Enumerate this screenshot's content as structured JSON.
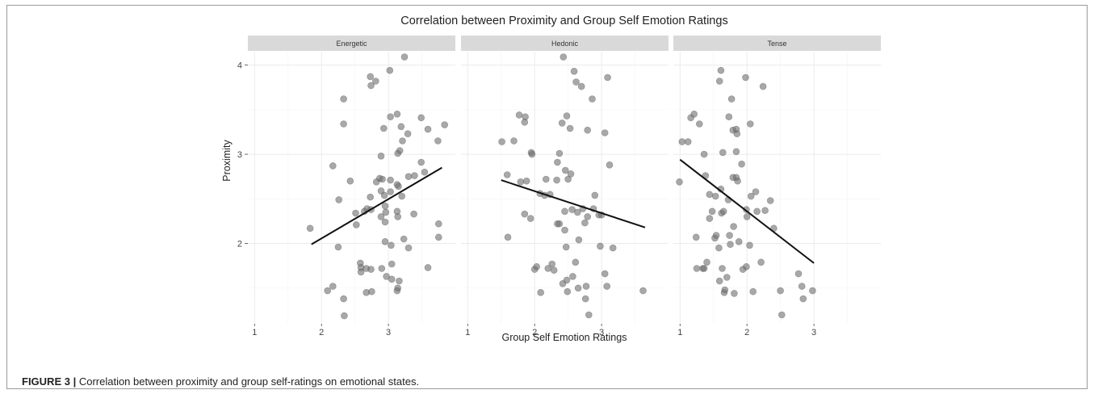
{
  "figure": {
    "caption_label": "FIGURE 3 |",
    "caption_text": "Correlation between proximity and group self-ratings on emotional states."
  },
  "colors": {
    "point_fill": "#6e6e6e",
    "point_stroke": "#555555",
    "strip_bg": "#d9d9d9",
    "grid": "#ebebeb",
    "line": "#111111"
  },
  "chart_data": {
    "type": "scatter",
    "title": "Correlation between Proximity and Group Self Emotion Ratings",
    "xlabel": "Group Self Emotion Ratings",
    "ylabel": "Proximity",
    "xlim": [
      0.9,
      4.0
    ],
    "ylim": [
      1.1,
      4.15
    ],
    "x_ticks": [
      1,
      2,
      3
    ],
    "y_ticks": [
      2,
      3,
      4
    ],
    "grid": true,
    "facets": [
      {
        "name": "Energetic",
        "fit_line": [
          [
            1.85,
            1.99
          ],
          [
            3.8,
            2.85
          ]
        ],
        "points": [
          [
            1.83,
            2.17
          ],
          [
            2.09,
            1.47
          ],
          [
            2.17,
            2.87
          ],
          [
            2.17,
            1.52
          ],
          [
            2.26,
            2.49
          ],
          [
            2.25,
            1.96
          ],
          [
            2.33,
            3.62
          ],
          [
            2.33,
            3.34
          ],
          [
            2.33,
            1.38
          ],
          [
            2.34,
            1.19
          ],
          [
            2.43,
            2.7
          ],
          [
            2.51,
            2.34
          ],
          [
            2.52,
            2.21
          ],
          [
            2.58,
            1.78
          ],
          [
            2.59,
            1.73
          ],
          [
            2.59,
            1.68
          ],
          [
            2.64,
            2.36
          ],
          [
            2.68,
            2.39
          ],
          [
            2.67,
            1.72
          ],
          [
            2.67,
            1.45
          ],
          [
            2.73,
            3.87
          ],
          [
            2.74,
            3.77
          ],
          [
            2.73,
            2.52
          ],
          [
            2.74,
            2.38
          ],
          [
            2.74,
            1.71
          ],
          [
            2.75,
            1.46
          ],
          [
            2.81,
            3.82
          ],
          [
            2.82,
            2.69
          ],
          [
            2.87,
            2.73
          ],
          [
            2.91,
            2.72
          ],
          [
            2.89,
            2.59
          ],
          [
            2.89,
            2.3
          ],
          [
            2.89,
            2.98
          ],
          [
            2.9,
            1.72
          ],
          [
            2.93,
            3.29
          ],
          [
            2.94,
            2.54
          ],
          [
            2.95,
            2.42
          ],
          [
            2.96,
            2.35
          ],
          [
            2.95,
            2.24
          ],
          [
            2.95,
            2.02
          ],
          [
            2.97,
            1.63
          ],
          [
            3.02,
            3.94
          ],
          [
            3.03,
            3.42
          ],
          [
            3.03,
            2.71
          ],
          [
            3.03,
            2.58
          ],
          [
            3.04,
            1.98
          ],
          [
            3.05,
            1.77
          ],
          [
            3.05,
            1.6
          ],
          [
            3.13,
            3.45
          ],
          [
            3.14,
            3.01
          ],
          [
            3.13,
            2.66
          ],
          [
            3.13,
            2.36
          ],
          [
            3.14,
            2.3
          ],
          [
            3.14,
            1.5
          ],
          [
            3.13,
            1.47
          ],
          [
            3.15,
            2.64
          ],
          [
            3.16,
            1.58
          ],
          [
            3.17,
            3.04
          ],
          [
            3.19,
            3.31
          ],
          [
            3.2,
            2.53
          ],
          [
            3.21,
            3.15
          ],
          [
            3.23,
            2.05
          ],
          [
            3.24,
            4.09
          ],
          [
            3.29,
            3.23
          ],
          [
            3.3,
            2.75
          ],
          [
            3.3,
            1.95
          ],
          [
            3.38,
            2.33
          ],
          [
            3.39,
            2.76
          ],
          [
            3.49,
            3.41
          ],
          [
            3.49,
            2.91
          ],
          [
            3.54,
            2.8
          ],
          [
            3.59,
            3.28
          ],
          [
            3.59,
            1.73
          ],
          [
            3.74,
            3.15
          ],
          [
            3.75,
            2.22
          ],
          [
            3.75,
            2.07
          ],
          [
            3.84,
            3.33
          ]
        ]
      },
      {
        "name": "Hedonic",
        "fit_line": [
          [
            1.5,
            2.71
          ],
          [
            3.65,
            2.18
          ]
        ],
        "points": [
          [
            1.51,
            3.14
          ],
          [
            1.59,
            2.77
          ],
          [
            1.6,
            2.07
          ],
          [
            1.69,
            3.15
          ],
          [
            1.77,
            3.44
          ],
          [
            1.79,
            2.69
          ],
          [
            1.85,
            3.36
          ],
          [
            1.85,
            2.33
          ],
          [
            1.86,
            3.42
          ],
          [
            1.88,
            2.7
          ],
          [
            1.94,
            2.28
          ],
          [
            1.95,
            3.02
          ],
          [
            1.96,
            3.0
          ],
          [
            2.0,
            1.71
          ],
          [
            2.03,
            1.74
          ],
          [
            2.08,
            2.56
          ],
          [
            2.09,
            1.45
          ],
          [
            2.15,
            2.54
          ],
          [
            2.17,
            2.72
          ],
          [
            2.2,
            1.72
          ],
          [
            2.23,
            2.55
          ],
          [
            2.26,
            1.77
          ],
          [
            2.29,
            1.7
          ],
          [
            2.33,
            2.71
          ],
          [
            2.34,
            2.91
          ],
          [
            2.34,
            2.22
          ],
          [
            2.37,
            3.01
          ],
          [
            2.37,
            2.22
          ],
          [
            2.41,
            3.35
          ],
          [
            2.42,
            1.55
          ],
          [
            2.43,
            4.09
          ],
          [
            2.45,
            2.36
          ],
          [
            2.45,
            2.15
          ],
          [
            2.46,
            2.82
          ],
          [
            2.47,
            1.96
          ],
          [
            2.48,
            3.43
          ],
          [
            2.48,
            1.59
          ],
          [
            2.49,
            1.46
          ],
          [
            2.5,
            2.72
          ],
          [
            2.53,
            3.29
          ],
          [
            2.54,
            2.78
          ],
          [
            2.56,
            2.38
          ],
          [
            2.57,
            1.63
          ],
          [
            2.59,
            3.93
          ],
          [
            2.61,
            1.79
          ],
          [
            2.62,
            3.81
          ],
          [
            2.64,
            2.35
          ],
          [
            2.65,
            1.5
          ],
          [
            2.66,
            2.04
          ],
          [
            2.7,
            3.76
          ],
          [
            2.72,
            2.39
          ],
          [
            2.75,
            2.23
          ],
          [
            2.76,
            1.38
          ],
          [
            2.77,
            1.52
          ],
          [
            2.79,
            3.27
          ],
          [
            2.79,
            2.3
          ],
          [
            2.81,
            1.2
          ],
          [
            2.86,
            3.62
          ],
          [
            2.88,
            2.39
          ],
          [
            2.9,
            2.54
          ],
          [
            2.96,
            2.32
          ],
          [
            2.98,
            1.97
          ],
          [
            3.0,
            2.32
          ],
          [
            3.05,
            1.66
          ],
          [
            3.05,
            3.24
          ],
          [
            3.08,
            1.52
          ],
          [
            3.09,
            3.86
          ],
          [
            3.12,
            2.88
          ],
          [
            3.17,
            1.95
          ],
          [
            3.62,
            1.47
          ]
        ]
      },
      {
        "name": "Tense",
        "fit_line": [
          [
            1.0,
            2.94
          ],
          [
            3.0,
            1.78
          ]
        ],
        "points": [
          [
            0.99,
            2.69
          ],
          [
            1.03,
            3.14
          ],
          [
            1.12,
            3.14
          ],
          [
            1.16,
            3.41
          ],
          [
            1.21,
            3.45
          ],
          [
            1.24,
            2.07
          ],
          [
            1.25,
            1.72
          ],
          [
            1.29,
            3.34
          ],
          [
            1.34,
            1.72
          ],
          [
            1.36,
            1.72
          ],
          [
            1.36,
            3.0
          ],
          [
            1.38,
            2.76
          ],
          [
            1.4,
            1.79
          ],
          [
            1.44,
            2.55
          ],
          [
            1.44,
            2.28
          ],
          [
            1.48,
            2.36
          ],
          [
            1.52,
            2.06
          ],
          [
            1.53,
            2.53
          ],
          [
            1.54,
            2.09
          ],
          [
            1.58,
            1.95
          ],
          [
            1.59,
            3.82
          ],
          [
            1.59,
            1.58
          ],
          [
            1.61,
            3.94
          ],
          [
            1.61,
            2.61
          ],
          [
            1.62,
            2.34
          ],
          [
            1.63,
            1.72
          ],
          [
            1.64,
            3.02
          ],
          [
            1.65,
            2.36
          ],
          [
            1.66,
            1.45
          ],
          [
            1.67,
            1.48
          ],
          [
            1.7,
            1.62
          ],
          [
            1.72,
            2.49
          ],
          [
            1.73,
            3.42
          ],
          [
            1.74,
            2.09
          ],
          [
            1.75,
            1.99
          ],
          [
            1.77,
            3.62
          ],
          [
            1.79,
            3.27
          ],
          [
            1.79,
            2.74
          ],
          [
            1.8,
            2.19
          ],
          [
            1.81,
            1.44
          ],
          [
            1.84,
            3.28
          ],
          [
            1.84,
            3.03
          ],
          [
            1.84,
            2.74
          ],
          [
            1.85,
            3.23
          ],
          [
            1.86,
            2.7
          ],
          [
            1.88,
            2.02
          ],
          [
            1.92,
            2.89
          ],
          [
            1.94,
            1.71
          ],
          [
            1.98,
            3.86
          ],
          [
            1.99,
            2.38
          ],
          [
            1.99,
            1.74
          ],
          [
            2.0,
            2.3
          ],
          [
            2.04,
            1.98
          ],
          [
            2.05,
            3.34
          ],
          [
            2.06,
            2.53
          ],
          [
            2.09,
            1.46
          ],
          [
            2.13,
            2.58
          ],
          [
            2.15,
            2.36
          ],
          [
            2.21,
            1.79
          ],
          [
            2.24,
            3.76
          ],
          [
            2.27,
            2.37
          ],
          [
            2.35,
            2.48
          ],
          [
            2.4,
            2.17
          ],
          [
            2.5,
            1.47
          ],
          [
            2.52,
            1.2
          ],
          [
            2.77,
            1.66
          ],
          [
            2.82,
            1.52
          ],
          [
            2.84,
            1.38
          ],
          [
            2.98,
            1.47
          ]
        ]
      }
    ]
  }
}
